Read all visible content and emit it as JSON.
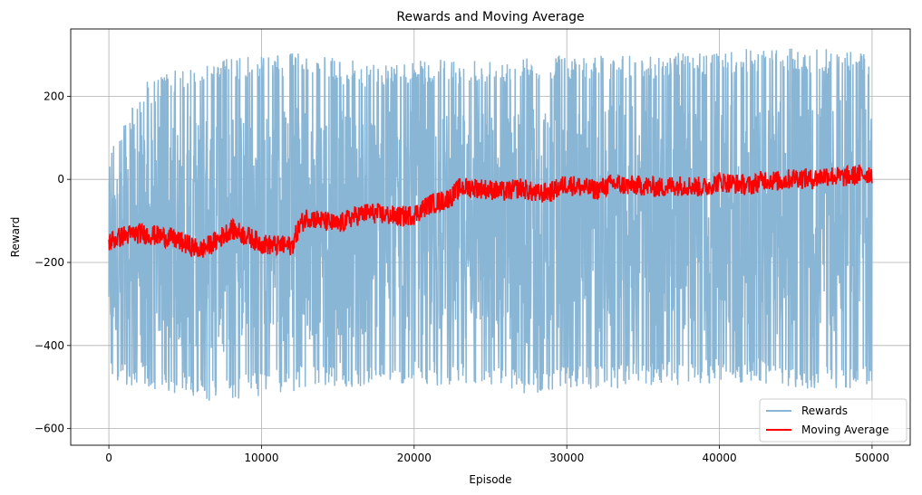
{
  "chart_data": {
    "type": "line",
    "title": "Rewards and Moving Average",
    "xlabel": "Episode",
    "ylabel": "Reward",
    "xlim": [
      -2500,
      52500
    ],
    "ylim": [
      -640,
      362
    ],
    "x_ticks": [
      0,
      10000,
      20000,
      30000,
      40000,
      50000
    ],
    "x_tick_labels": [
      "0",
      "10000",
      "20000",
      "30000",
      "40000",
      "50000"
    ],
    "y_ticks": [
      -600,
      -400,
      -200,
      0,
      200
    ],
    "y_tick_labels": [
      "−600",
      "−400",
      "−200",
      "0",
      "200"
    ],
    "grid": true,
    "legend_position": "lower-right",
    "series": [
      {
        "name": "Rewards",
        "color": "#8ab6d6",
        "episodes": 50000,
        "note_envelope": {
          "x": [
            0,
            2500,
            5000,
            7500,
            10000,
            12500,
            15000,
            17500,
            20000,
            22500,
            25000,
            27500,
            30000,
            32500,
            35000,
            37500,
            40000,
            42500,
            45000,
            47500,
            50000
          ],
          "upper": [
            80,
            240,
            270,
            290,
            300,
            305,
            290,
            280,
            285,
            290,
            290,
            295,
            300,
            300,
            300,
            305,
            310,
            315,
            315,
            315,
            310
          ],
          "lower": [
            -490,
            -500,
            -525,
            -540,
            -520,
            -510,
            -500,
            -500,
            -495,
            -500,
            -510,
            -520,
            -510,
            -505,
            -500,
            -495,
            -490,
            -490,
            -505,
            -505,
            -500
          ]
        }
      },
      {
        "name": "Moving Average",
        "color": "#ff0000",
        "x": [
          0,
          1000,
          2000,
          3000,
          4000,
          5000,
          6000,
          7000,
          8000,
          9000,
          10000,
          11000,
          12000,
          12500,
          13000,
          14000,
          15000,
          16000,
          17000,
          18000,
          19000,
          20000,
          21000,
          22000,
          22500,
          23000,
          24000,
          25000,
          26000,
          27000,
          28000,
          29000,
          30000,
          31000,
          32000,
          33000,
          34000,
          35000,
          36000,
          37000,
          38000,
          39000,
          40000,
          41000,
          42000,
          43000,
          44000,
          45000,
          46000,
          47000,
          48000,
          49000,
          50000
        ],
        "values": [
          -150,
          -135,
          -130,
          -135,
          -140,
          -155,
          -170,
          -150,
          -120,
          -135,
          -155,
          -160,
          -160,
          -110,
          -90,
          -100,
          -110,
          -90,
          -80,
          -85,
          -90,
          -85,
          -60,
          -50,
          -40,
          -20,
          -20,
          -25,
          -30,
          -20,
          -35,
          -30,
          -10,
          -20,
          -25,
          -10,
          -15,
          -15,
          -20,
          -15,
          -15,
          -20,
          -5,
          -10,
          -15,
          0,
          -5,
          5,
          0,
          10,
          5,
          10,
          15
        ]
      }
    ]
  }
}
